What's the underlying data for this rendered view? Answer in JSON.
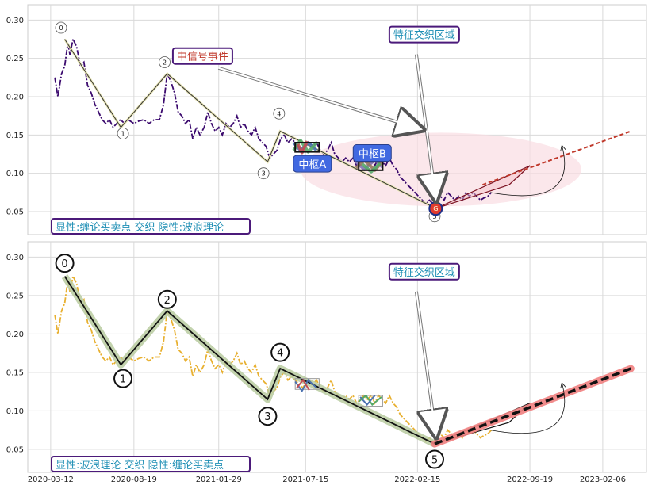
{
  "chart_data": [
    {
      "type": "line",
      "panel": "top",
      "title": "",
      "xlabel": "",
      "ylabel": "",
      "ylim": [
        0.02,
        0.32
      ],
      "yticks": [
        "0.05",
        "0.10",
        "0.15",
        "0.20",
        "0.25",
        "0.30"
      ],
      "grid": true,
      "x_dates": [
        "2020-03-12",
        "2020-08-19",
        "2021-01-29",
        "2021-07-15",
        "2022-02-15",
        "2022-09-19",
        "2023-02-06"
      ],
      "price_series": {
        "color": "#3b0a6e",
        "style": "dash-dot",
        "points": [
          [
            "2020-03-20",
            0.225
          ],
          [
            "2020-03-26",
            0.2
          ],
          [
            "2020-04-02",
            0.23
          ],
          [
            "2020-04-08",
            0.24
          ],
          [
            "2020-04-14",
            0.27
          ],
          [
            "2020-04-18",
            0.255
          ],
          [
            "2020-04-24",
            0.275
          ],
          [
            "2020-05-01",
            0.265
          ],
          [
            "2020-05-08",
            0.24
          ],
          [
            "2020-05-15",
            0.245
          ],
          [
            "2020-05-22",
            0.215
          ],
          [
            "2020-05-29",
            0.205
          ],
          [
            "2020-06-05",
            0.19
          ],
          [
            "2020-06-12",
            0.18
          ],
          [
            "2020-06-19",
            0.17
          ],
          [
            "2020-06-26",
            0.165
          ],
          [
            "2020-07-03",
            0.17
          ],
          [
            "2020-07-10",
            0.16
          ],
          [
            "2020-07-17",
            0.165
          ],
          [
            "2020-07-24",
            0.17
          ],
          [
            "2020-08-01",
            0.165
          ],
          [
            "2020-08-08",
            0.17
          ],
          [
            "2020-08-19",
            0.165
          ],
          [
            "2020-08-28",
            0.168
          ],
          [
            "2020-09-07",
            0.17
          ],
          [
            "2020-09-17",
            0.165
          ],
          [
            "2020-09-27",
            0.17
          ],
          [
            "2020-10-07",
            0.17
          ],
          [
            "2020-10-15",
            0.19
          ],
          [
            "2020-10-22",
            0.23
          ],
          [
            "2020-10-29",
            0.22
          ],
          [
            "2020-11-05",
            0.205
          ],
          [
            "2020-11-12",
            0.18
          ],
          [
            "2020-11-19",
            0.175
          ],
          [
            "2020-11-26",
            0.165
          ],
          [
            "2020-12-03",
            0.17
          ],
          [
            "2020-12-10",
            0.145
          ],
          [
            "2020-12-17",
            0.16
          ],
          [
            "2020-12-24",
            0.15
          ],
          [
            "2021-01-01",
            0.16
          ],
          [
            "2021-01-08",
            0.18
          ],
          [
            "2021-01-15",
            0.165
          ],
          [
            "2021-01-22",
            0.155
          ],
          [
            "2021-01-29",
            0.16
          ],
          [
            "2021-02-05",
            0.15
          ],
          [
            "2021-02-12",
            0.165
          ],
          [
            "2021-02-19",
            0.16
          ],
          [
            "2021-02-26",
            0.165
          ],
          [
            "2021-03-05",
            0.175
          ],
          [
            "2021-03-12",
            0.16
          ],
          [
            "2021-03-19",
            0.165
          ],
          [
            "2021-03-26",
            0.155
          ],
          [
            "2021-04-02",
            0.15
          ],
          [
            "2021-04-09",
            0.16
          ],
          [
            "2021-04-16",
            0.145
          ],
          [
            "2021-04-23",
            0.14
          ],
          [
            "2021-04-30",
            0.135
          ],
          [
            "2021-05-07",
            0.12
          ],
          [
            "2021-05-14",
            0.125
          ],
          [
            "2021-05-21",
            0.13
          ],
          [
            "2021-05-28",
            0.145
          ],
          [
            "2021-06-04",
            0.15
          ],
          [
            "2021-06-11",
            0.14
          ],
          [
            "2021-06-18",
            0.145
          ],
          [
            "2021-06-25",
            0.14
          ],
          [
            "2021-07-02",
            0.135
          ],
          [
            "2021-07-09",
            0.13
          ],
          [
            "2021-07-15",
            0.135
          ],
          [
            "2021-07-22",
            0.14
          ],
          [
            "2021-07-29",
            0.135
          ],
          [
            "2021-08-05",
            0.14
          ],
          [
            "2021-08-12",
            0.13
          ],
          [
            "2021-08-19",
            0.125
          ],
          [
            "2021-08-26",
            0.13
          ],
          [
            "2021-09-02",
            0.14
          ],
          [
            "2021-09-09",
            0.125
          ],
          [
            "2021-09-16",
            0.12
          ],
          [
            "2021-09-23",
            0.115
          ],
          [
            "2021-09-30",
            0.12
          ],
          [
            "2021-10-07",
            0.115
          ],
          [
            "2021-10-14",
            0.12
          ],
          [
            "2021-10-21",
            0.11
          ],
          [
            "2021-10-28",
            0.115
          ],
          [
            "2021-11-04",
            0.12
          ],
          [
            "2021-11-11",
            0.115
          ],
          [
            "2021-11-18",
            0.12
          ],
          [
            "2021-11-25",
            0.11
          ],
          [
            "2021-12-02",
            0.12
          ],
          [
            "2021-12-09",
            0.115
          ],
          [
            "2021-12-16",
            0.11
          ],
          [
            "2021-12-23",
            0.12
          ],
          [
            "2021-12-30",
            0.11
          ],
          [
            "2022-01-06",
            0.105
          ],
          [
            "2022-01-13",
            0.095
          ],
          [
            "2022-01-20",
            0.09
          ],
          [
            "2022-01-27",
            0.085
          ],
          [
            "2022-02-03",
            0.08
          ],
          [
            "2022-02-10",
            0.075
          ],
          [
            "2022-02-17",
            0.07
          ],
          [
            "2022-02-24",
            0.065
          ],
          [
            "2022-03-03",
            0.06
          ],
          [
            "2022-03-10",
            0.065
          ],
          [
            "2022-03-17",
            0.06
          ],
          [
            "2022-03-24",
            0.065
          ],
          [
            "2022-03-31",
            0.07
          ],
          [
            "2022-04-07",
            0.065
          ],
          [
            "2022-04-14",
            0.075
          ],
          [
            "2022-04-21",
            0.07
          ],
          [
            "2022-04-28",
            0.065
          ],
          [
            "2022-05-05",
            0.07
          ],
          [
            "2022-05-12",
            0.065
          ],
          [
            "2022-05-19",
            0.075
          ],
          [
            "2022-05-26",
            0.07
          ],
          [
            "2022-06-02",
            0.075
          ],
          [
            "2022-06-09",
            0.07
          ],
          [
            "2022-06-16",
            0.065
          ],
          [
            "2022-06-23",
            0.068
          ],
          [
            "2022-06-30",
            0.07
          ],
          [
            "2022-07-07",
            0.075
          ]
        ]
      },
      "wave_path": [
        [
          "2020-04-08",
          0.275
        ],
        [
          "2020-07-25",
          0.16
        ],
        [
          "2020-10-22",
          0.23
        ],
        [
          "2021-05-03",
          0.115
        ],
        [
          "2021-05-27",
          0.155
        ],
        [
          "2022-03-20",
          0.055
        ]
      ],
      "wave_labels": [
        {
          "text": "0",
          "date": "2020-04-01",
          "y": 0.29
        },
        {
          "text": "1",
          "date": "2020-07-29",
          "y": 0.152
        },
        {
          "text": "2",
          "date": "2020-10-17",
          "y": 0.245
        },
        {
          "text": "3",
          "date": "2021-04-25",
          "y": 0.1
        },
        {
          "text": "4",
          "date": "2021-05-25",
          "y": 0.178
        },
        {
          "text": "5",
          "date": "2022-03-20",
          "y": 0.044
        }
      ],
      "pivot_boxes": [
        {
          "x0": "2021-06-25",
          "x1": "2021-08-10",
          "y0": 0.128,
          "y1": 0.14,
          "color": "#111111"
        },
        {
          "x0": "2021-10-25",
          "x1": "2021-12-10",
          "y0": 0.104,
          "y1": 0.115,
          "color": "#111111"
        }
      ],
      "pivot_labels": [
        {
          "text": "中枢A",
          "date": "2021-07-28",
          "y": 0.112
        },
        {
          "text": "中枢B",
          "date": "2021-11-20",
          "y": 0.126
        }
      ],
      "pivot_strokes": [
        {
          "color": "#4c72b0",
          "points": [
            [
              "2021-06-22",
              0.14
            ],
            [
              "2021-07-05",
              0.13
            ],
            [
              "2021-07-20",
              0.14
            ],
            [
              "2021-08-05",
              0.13
            ]
          ]
        },
        {
          "color": "#55a868",
          "points": [
            [
              "2021-06-22",
              0.13
            ],
            [
              "2021-07-05",
              0.143
            ],
            [
              "2021-07-20",
              0.128
            ],
            [
              "2021-08-05",
              0.14
            ]
          ]
        },
        {
          "color": "#c44e52",
          "points": [
            [
              "2021-06-30",
              0.138
            ],
            [
              "2021-07-08",
              0.127
            ],
            [
              "2021-07-18",
              0.142
            ]
          ]
        },
        {
          "color": "#8172b2",
          "points": [
            [
              "2021-10-20",
              0.115
            ],
            [
              "2021-11-05",
              0.105
            ],
            [
              "2021-11-25",
              0.118
            ],
            [
              "2021-12-10",
              0.108
            ]
          ]
        },
        {
          "color": "#937860",
          "points": [
            [
              "2021-10-20",
              0.107
            ],
            [
              "2021-11-05",
              0.117
            ],
            [
              "2021-11-25",
              0.104
            ],
            [
              "2021-12-10",
              0.116
            ]
          ]
        },
        {
          "color": "#55a868",
          "points": [
            [
              "2021-11-01",
              0.112
            ],
            [
              "2021-11-18",
              0.102
            ],
            [
              "2021-12-05",
              0.113
            ]
          ]
        }
      ],
      "ellipse": {
        "cx_date": "2022-04-01",
        "cy": 0.105,
        "rx_days": 270,
        "ry": 0.048,
        "fill": "#f9dde2"
      },
      "signal_marker": {
        "text": "G",
        "date": "2022-03-22",
        "y": 0.054
      },
      "future_triangle": [
        [
          "2022-03-22",
          0.054
        ],
        [
          "2022-09-19",
          0.11
        ],
        [
          "2022-08-10",
          0.085
        ]
      ],
      "projection": {
        "from": [
          "2022-06-20",
          0.085
        ],
        "to": [
          "2023-04-01",
          0.155
        ],
        "color": "#c0392b"
      },
      "arc": {
        "from": [
          "2022-07-05",
          0.075
        ],
        "to": [
          "2022-11-20",
          0.135
        ]
      },
      "annotations": [
        {
          "text": "特征交织区域",
          "date": "2022-02-28",
          "y": 0.28,
          "color": "#1f8fb5",
          "border": "#4b1a7a"
        },
        {
          "text": "中信号事件",
          "date": "2020-12-29",
          "y": 0.252,
          "color": "#c0392b",
          "border": "#4b1a7a"
        }
      ],
      "corner_label": {
        "text": "显性:缠论买卖点 交织 隐性:波浪理论",
        "color": "#1f8fb5",
        "border": "#4b1a7a"
      }
    },
    {
      "type": "line",
      "panel": "bottom",
      "title": "",
      "xlabel": "",
      "ylabel": "",
      "ylim": [
        0.02,
        0.32
      ],
      "yticks": [
        "0.05",
        "0.10",
        "0.15",
        "0.20",
        "0.25",
        "0.30"
      ],
      "xticks": [
        "2020-03-12",
        "2020-08-19",
        "2021-01-29",
        "2021-07-15",
        "2022-02-15",
        "2022-09-19",
        "2023-02-06"
      ],
      "grid": true,
      "price_series": {
        "color": "#e8b030",
        "style": "dash-dot",
        "points": "same-as-top"
      },
      "wave_path": [
        [
          "2020-04-08",
          0.275
        ],
        [
          "2020-07-25",
          0.16
        ],
        [
          "2020-10-22",
          0.23
        ],
        [
          "2021-05-03",
          0.115
        ],
        [
          "2021-05-27",
          0.155
        ],
        [
          "2022-03-20",
          0.057
        ]
      ],
      "wave_labels": [
        {
          "text": "0",
          "date": "2020-04-08",
          "y": 0.292
        },
        {
          "text": "1",
          "date": "2020-07-29",
          "y": 0.142
        },
        {
          "text": "2",
          "date": "2020-10-22",
          "y": 0.245
        },
        {
          "text": "3",
          "date": "2021-05-03",
          "y": 0.093
        },
        {
          "text": "4",
          "date": "2021-05-27",
          "y": 0.176
        },
        {
          "text": "5",
          "date": "2022-03-20",
          "y": 0.037
        }
      ],
      "pivot_boxes": [
        {
          "x0": "2021-06-25",
          "x1": "2021-08-10",
          "y0": 0.128,
          "y1": 0.142,
          "color": "#999999"
        },
        {
          "x0": "2021-10-25",
          "x1": "2021-12-10",
          "y0": 0.106,
          "y1": 0.12,
          "color": "#999999"
        }
      ],
      "projection": {
        "from": [
          "2022-03-20",
          0.057
        ],
        "to": [
          "2023-04-01",
          0.155
        ],
        "color": "#f08080"
      },
      "future_triangle": [
        [
          "2022-03-20",
          0.057
        ],
        [
          "2022-09-19",
          0.11
        ],
        [
          "2022-08-10",
          0.085
        ]
      ],
      "arc": {
        "from": [
          "2022-07-05",
          0.075
        ],
        "to": [
          "2022-11-20",
          0.135
        ]
      },
      "annotations": [
        {
          "text": "特征交织区域",
          "date": "2022-02-28",
          "y": 0.28,
          "color": "#1f8fb5",
          "border": "#4b1a7a"
        }
      ],
      "corner_label": {
        "text": "显性:波浪理论 交织 隐性:缠论买卖点",
        "color": "#1f8fb5",
        "border": "#4b1a7a"
      }
    }
  ]
}
